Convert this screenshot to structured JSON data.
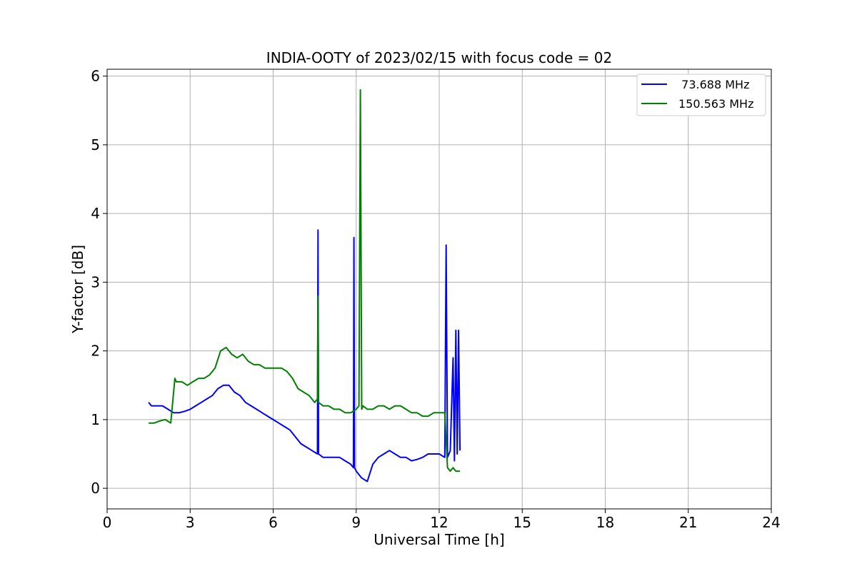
{
  "chart_data": {
    "type": "line",
    "title": "INDIA-OOTY of 2023/02/15 with focus code = 02",
    "xlabel": "Universal Time [h]",
    "ylabel": "Y-factor [dB]",
    "xlim": [
      0,
      24
    ],
    "ylim": [
      -0.3,
      6.1
    ],
    "xticks": [
      0,
      3,
      6,
      9,
      12,
      15,
      18,
      21,
      24
    ],
    "yticks": [
      0,
      1,
      2,
      3,
      4,
      5,
      6
    ],
    "grid": true,
    "legend_position": "top-right",
    "series": [
      {
        "name": "  73.688 MHz",
        "color": "#0000ff",
        "x": [
          1.5,
          1.6,
          1.8,
          2.0,
          2.2,
          2.4,
          2.6,
          2.8,
          3.0,
          3.2,
          3.4,
          3.6,
          3.8,
          4.0,
          4.2,
          4.4,
          4.6,
          4.8,
          5.0,
          5.2,
          5.4,
          5.6,
          5.8,
          6.0,
          6.2,
          6.4,
          6.6,
          6.8,
          7.0,
          7.2,
          7.4,
          7.6,
          7.62,
          7.64,
          7.8,
          8.0,
          8.2,
          8.4,
          8.6,
          8.8,
          8.9,
          8.92,
          8.94,
          9.0,
          9.2,
          9.4,
          9.6,
          9.8,
          10.0,
          10.2,
          10.4,
          10.6,
          10.8,
          11.0,
          11.2,
          11.4,
          11.6,
          11.8,
          12.0,
          12.2,
          12.25,
          12.3,
          12.35,
          12.4,
          12.5,
          12.55,
          12.6,
          12.65,
          12.7,
          12.75
        ],
        "values": [
          1.25,
          1.2,
          1.2,
          1.2,
          1.15,
          1.1,
          1.1,
          1.12,
          1.15,
          1.2,
          1.25,
          1.3,
          1.35,
          1.45,
          1.5,
          1.5,
          1.4,
          1.35,
          1.25,
          1.2,
          1.15,
          1.1,
          1.05,
          1.0,
          0.95,
          0.9,
          0.85,
          0.75,
          0.65,
          0.6,
          0.55,
          0.5,
          3.76,
          0.5,
          0.45,
          0.45,
          0.45,
          0.45,
          0.4,
          0.35,
          0.3,
          3.65,
          0.3,
          0.25,
          0.15,
          0.1,
          0.35,
          0.45,
          0.5,
          0.55,
          0.5,
          0.45,
          0.45,
          0.4,
          0.42,
          0.45,
          0.5,
          0.5,
          0.5,
          0.45,
          3.54,
          0.45,
          0.5,
          0.55,
          1.9,
          0.4,
          2.3,
          0.5,
          2.3,
          0.55
        ]
      },
      {
        "name": "150.563 MHz",
        "color": "#008000",
        "x": [
          1.5,
          1.7,
          1.9,
          2.1,
          2.3,
          2.45,
          2.5,
          2.7,
          2.9,
          3.1,
          3.3,
          3.5,
          3.7,
          3.9,
          4.1,
          4.3,
          4.5,
          4.7,
          4.9,
          5.1,
          5.3,
          5.5,
          5.7,
          5.9,
          6.1,
          6.3,
          6.5,
          6.7,
          6.9,
          7.1,
          7.3,
          7.5,
          7.6,
          7.62,
          7.64,
          7.8,
          8.0,
          8.2,
          8.4,
          8.6,
          8.8,
          9.0,
          9.1,
          9.15,
          9.2,
          9.25,
          9.4,
          9.6,
          9.8,
          10.0,
          10.2,
          10.4,
          10.6,
          10.8,
          11.0,
          11.2,
          11.4,
          11.6,
          11.8,
          12.0,
          12.2,
          12.3,
          12.4,
          12.5,
          12.6,
          12.7,
          12.75
        ],
        "values": [
          0.95,
          0.95,
          0.98,
          1.0,
          0.95,
          1.6,
          1.55,
          1.55,
          1.5,
          1.55,
          1.6,
          1.6,
          1.65,
          1.75,
          2.0,
          2.05,
          1.95,
          1.9,
          1.95,
          1.85,
          1.8,
          1.8,
          1.75,
          1.75,
          1.75,
          1.75,
          1.7,
          1.6,
          1.45,
          1.4,
          1.35,
          1.25,
          1.3,
          2.8,
          1.25,
          1.2,
          1.2,
          1.15,
          1.15,
          1.1,
          1.1,
          1.15,
          1.2,
          5.8,
          1.15,
          1.2,
          1.15,
          1.15,
          1.2,
          1.2,
          1.15,
          1.2,
          1.2,
          1.15,
          1.1,
          1.1,
          1.05,
          1.05,
          1.1,
          1.1,
          1.1,
          0.3,
          0.25,
          0.3,
          0.25,
          0.25,
          0.25
        ]
      }
    ]
  }
}
